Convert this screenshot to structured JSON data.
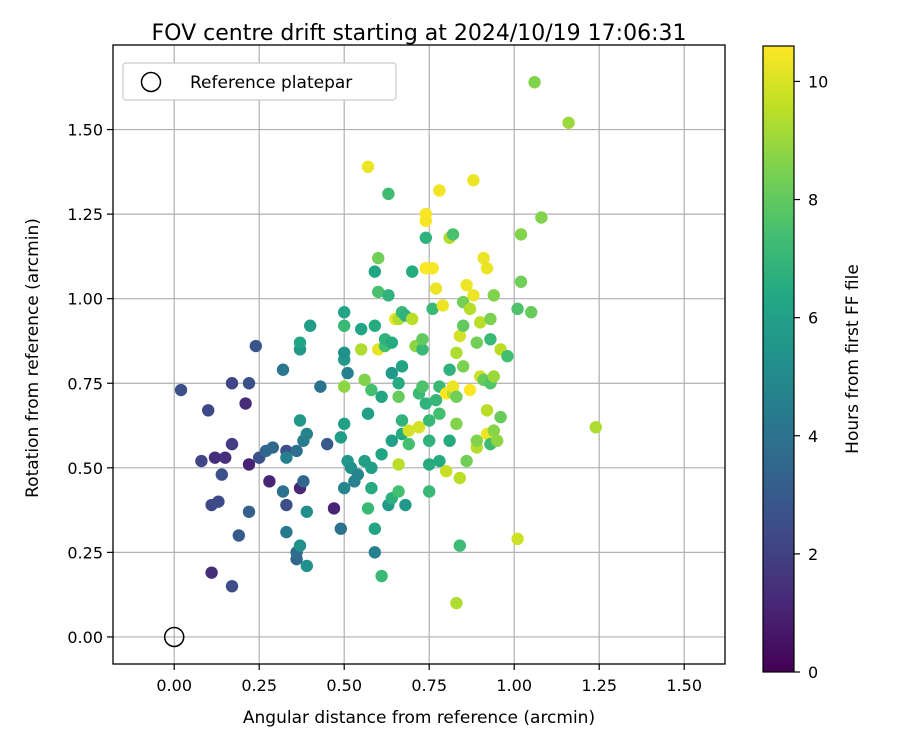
{
  "chart_data": {
    "type": "scatter",
    "title": "FOV centre drift starting at 2024/10/19 17:06:31",
    "xlabel": "Angular distance from reference (arcmin)",
    "ylabel": "Rotation from reference (arcmin)",
    "xlim": [
      -0.18,
      1.62
    ],
    "ylim": [
      -0.08,
      1.75
    ],
    "xticks": [
      "0.00",
      "0.25",
      "0.50",
      "0.75",
      "1.00",
      "1.25",
      "1.50"
    ],
    "yticks": [
      "0.00",
      "0.25",
      "0.50",
      "0.75",
      "1.00",
      "1.25",
      "1.50"
    ],
    "grid": true,
    "legend": {
      "placement": "top-left",
      "entries": [
        "Reference platepar"
      ]
    },
    "reference_point": {
      "x": 0.0,
      "y": 0.0
    },
    "colorbar": {
      "label": "Hours from first FF file",
      "range": [
        0,
        10.6
      ],
      "ticks": [
        "0",
        "2",
        "4",
        "6",
        "8",
        "10"
      ],
      "colormap": "viridis"
    },
    "points": [
      [
        0.02,
        0.73,
        2.6
      ],
      [
        0.1,
        0.67,
        2.3
      ],
      [
        0.17,
        0.75,
        2.2
      ],
      [
        0.24,
        0.86,
        2.8
      ],
      [
        0.21,
        0.69,
        1.3
      ],
      [
        0.22,
        0.75,
        2.6
      ],
      [
        0.08,
        0.52,
        2.2
      ],
      [
        0.12,
        0.53,
        1.4
      ],
      [
        0.15,
        0.53,
        1.5
      ],
      [
        0.17,
        0.57,
        1.9
      ],
      [
        0.14,
        0.48,
        2.6
      ],
      [
        0.11,
        0.39,
        2.3
      ],
      [
        0.13,
        0.4,
        2.4
      ],
      [
        0.22,
        0.51,
        1.0
      ],
      [
        0.25,
        0.53,
        2.6
      ],
      [
        0.27,
        0.55,
        3.5
      ],
      [
        0.29,
        0.56,
        3.6
      ],
      [
        0.33,
        0.55,
        2.6
      ],
      [
        0.33,
        0.53,
        4.6
      ],
      [
        0.36,
        0.55,
        3.9
      ],
      [
        0.37,
        0.44,
        1.2
      ],
      [
        0.38,
        0.46,
        3.5
      ],
      [
        0.28,
        0.46,
        1.1
      ],
      [
        0.32,
        0.43,
        4.0
      ],
      [
        0.33,
        0.39,
        2.5
      ],
      [
        0.22,
        0.37,
        3.2
      ],
      [
        0.19,
        0.3,
        3.0
      ],
      [
        0.11,
        0.19,
        1.4
      ],
      [
        0.17,
        0.15,
        2.5
      ],
      [
        0.33,
        0.31,
        4.3
      ],
      [
        0.36,
        0.23,
        3.5
      ],
      [
        0.36,
        0.25,
        3.7
      ],
      [
        0.37,
        0.27,
        5.3
      ],
      [
        0.39,
        0.21,
        5.3
      ],
      [
        0.39,
        0.37,
        5.2
      ],
      [
        0.38,
        0.58,
        4.4
      ],
      [
        0.39,
        0.6,
        4.7
      ],
      [
        0.37,
        0.64,
        5.6
      ],
      [
        0.37,
        0.85,
        5.6
      ],
      [
        0.37,
        0.87,
        6.2
      ],
      [
        0.4,
        0.92,
        5.9
      ],
      [
        0.32,
        0.79,
        4.2
      ],
      [
        0.43,
        0.74,
        4.0
      ],
      [
        0.45,
        0.57,
        3.0
      ],
      [
        0.47,
        0.38,
        1.1
      ],
      [
        0.49,
        0.32,
        4.0
      ],
      [
        0.5,
        0.44,
        4.8
      ],
      [
        0.49,
        0.59,
        5.9
      ],
      [
        0.5,
        0.63,
        6.0
      ],
      [
        0.5,
        0.82,
        5.6
      ],
      [
        0.5,
        0.84,
        5.3
      ],
      [
        0.5,
        0.96,
        6.2
      ],
      [
        0.5,
        0.92,
        7.1
      ],
      [
        0.5,
        0.74,
        8.8
      ],
      [
        0.51,
        0.52,
        5.6
      ],
      [
        0.51,
        0.78,
        4.6
      ],
      [
        0.52,
        0.5,
        5.3
      ],
      [
        0.53,
        0.46,
        4.6
      ],
      [
        0.54,
        0.48,
        4.8
      ],
      [
        0.55,
        0.85,
        9.3
      ],
      [
        0.55,
        0.91,
        6.2
      ],
      [
        0.56,
        0.52,
        6.0
      ],
      [
        0.56,
        0.76,
        8.6
      ],
      [
        0.57,
        0.66,
        6.0
      ],
      [
        0.57,
        0.38,
        7.1
      ],
      [
        0.57,
        1.39,
        10.3
      ],
      [
        0.58,
        0.44,
        6.5
      ],
      [
        0.58,
        0.5,
        6.0
      ],
      [
        0.58,
        0.73,
        7.4
      ],
      [
        0.59,
        0.32,
        6.2
      ],
      [
        0.59,
        0.25,
        4.6
      ],
      [
        0.59,
        0.92,
        6.5
      ],
      [
        0.59,
        1.08,
        6.2
      ],
      [
        0.6,
        1.02,
        7.5
      ],
      [
        0.6,
        0.85,
        10.2
      ],
      [
        0.6,
        1.12,
        8.3
      ],
      [
        0.61,
        0.18,
        7.1
      ],
      [
        0.61,
        0.54,
        6.2
      ],
      [
        0.61,
        0.71,
        6.2
      ],
      [
        0.62,
        0.86,
        7.4
      ],
      [
        0.62,
        0.88,
        6.8
      ],
      [
        0.63,
        0.39,
        5.6
      ],
      [
        0.63,
        1.31,
        7.3
      ],
      [
        0.63,
        1.01,
        6.8
      ],
      [
        0.64,
        0.41,
        6.7
      ],
      [
        0.64,
        0.58,
        6.0
      ],
      [
        0.64,
        0.78,
        5.6
      ],
      [
        0.64,
        0.87,
        6.5
      ],
      [
        0.65,
        0.94,
        10.3
      ],
      [
        0.66,
        0.43,
        7.4
      ],
      [
        0.66,
        0.51,
        9.5
      ],
      [
        0.66,
        0.71,
        8.1
      ],
      [
        0.66,
        0.75,
        6.5
      ],
      [
        0.66,
        0.94,
        9.3
      ],
      [
        0.67,
        0.6,
        6.5
      ],
      [
        0.67,
        0.64,
        6.8
      ],
      [
        0.67,
        0.8,
        6.2
      ],
      [
        0.67,
        0.96,
        7.1
      ],
      [
        0.68,
        0.39,
        5.6
      ],
      [
        0.68,
        0.95,
        6.8
      ],
      [
        0.69,
        0.57,
        7.4
      ],
      [
        0.69,
        0.61,
        9.9
      ],
      [
        0.7,
        0.94,
        9.5
      ],
      [
        0.7,
        1.08,
        6.5
      ],
      [
        0.71,
        0.86,
        8.8
      ],
      [
        0.72,
        0.62,
        9.9
      ],
      [
        0.72,
        0.72,
        7.1
      ],
      [
        0.73,
        0.85,
        7.1
      ],
      [
        0.73,
        0.88,
        8.0
      ],
      [
        0.73,
        0.74,
        7.6
      ],
      [
        0.74,
        0.69,
        6.8
      ],
      [
        0.74,
        1.09,
        10.6
      ],
      [
        0.74,
        1.18,
        6.8
      ],
      [
        0.74,
        1.23,
        10.5
      ],
      [
        0.74,
        1.25,
        10.5
      ],
      [
        0.75,
        0.51,
        6.5
      ],
      [
        0.75,
        0.43,
        7.1
      ],
      [
        0.75,
        0.58,
        6.8
      ],
      [
        0.75,
        0.64,
        7.1
      ],
      [
        0.76,
        1.09,
        10.5
      ],
      [
        0.76,
        0.97,
        7.1
      ],
      [
        0.77,
        0.7,
        7.0
      ],
      [
        0.77,
        1.03,
        10.3
      ],
      [
        0.78,
        0.52,
        6.5
      ],
      [
        0.78,
        0.66,
        7.4
      ],
      [
        0.78,
        0.74,
        7.1
      ],
      [
        0.78,
        1.32,
        10.4
      ],
      [
        0.79,
        0.98,
        10.3
      ],
      [
        0.8,
        0.49,
        9.7
      ],
      [
        0.8,
        0.72,
        10.6
      ],
      [
        0.81,
        0.58,
        6.5
      ],
      [
        0.81,
        0.79,
        6.8
      ],
      [
        0.81,
        1.18,
        9.4
      ],
      [
        0.82,
        0.72,
        9.3
      ],
      [
        0.82,
        0.74,
        10.3
      ],
      [
        0.82,
        1.19,
        7.5
      ],
      [
        0.83,
        0.1,
        9.3
      ],
      [
        0.83,
        0.63,
        8.6
      ],
      [
        0.83,
        0.71,
        8.3
      ],
      [
        0.83,
        0.84,
        9.3
      ],
      [
        0.84,
        0.47,
        9.5
      ],
      [
        0.84,
        0.27,
        7.2
      ],
      [
        0.84,
        0.89,
        9.9
      ],
      [
        0.85,
        0.8,
        8.5
      ],
      [
        0.85,
        0.92,
        8.0
      ],
      [
        0.85,
        0.99,
        8.3
      ],
      [
        0.86,
        0.52,
        8.3
      ],
      [
        0.86,
        1.04,
        10.3
      ],
      [
        0.87,
        0.97,
        9.4
      ],
      [
        0.87,
        0.73,
        10.6
      ],
      [
        0.88,
        1.35,
        10.3
      ],
      [
        0.88,
        1.01,
        10.3
      ],
      [
        0.89,
        0.56,
        9.4
      ],
      [
        0.89,
        0.58,
        8.6
      ],
      [
        0.89,
        0.87,
        8.3
      ],
      [
        0.9,
        0.93,
        9.5
      ],
      [
        0.9,
        0.77,
        9.8
      ],
      [
        0.91,
        1.12,
        10.3
      ],
      [
        0.91,
        0.76,
        8.1
      ],
      [
        0.92,
        0.67,
        9.5
      ],
      [
        0.92,
        0.6,
        10.3
      ],
      [
        0.92,
        1.09,
        10.3
      ],
      [
        0.93,
        0.57,
        7.3
      ],
      [
        0.93,
        0.94,
        8.5
      ],
      [
        0.93,
        0.88,
        7.1
      ],
      [
        0.93,
        0.75,
        7.7
      ],
      [
        0.94,
        0.77,
        9.0
      ],
      [
        0.94,
        0.61,
        8.7
      ],
      [
        0.94,
        1.01,
        8.6
      ],
      [
        0.95,
        0.58,
        8.8
      ],
      [
        0.96,
        0.65,
        8.1
      ],
      [
        0.96,
        0.85,
        9.5
      ],
      [
        0.98,
        0.83,
        7.4
      ],
      [
        1.01,
        0.29,
        9.8
      ],
      [
        1.01,
        0.97,
        7.6
      ],
      [
        1.02,
        1.05,
        8.3
      ],
      [
        1.02,
        1.19,
        8.6
      ],
      [
        1.05,
        0.96,
        8.1
      ],
      [
        1.06,
        1.64,
        8.6
      ],
      [
        1.08,
        1.24,
        8.6
      ],
      [
        1.16,
        1.52,
        9.0
      ],
      [
        1.24,
        0.62,
        9.3
      ]
    ]
  }
}
